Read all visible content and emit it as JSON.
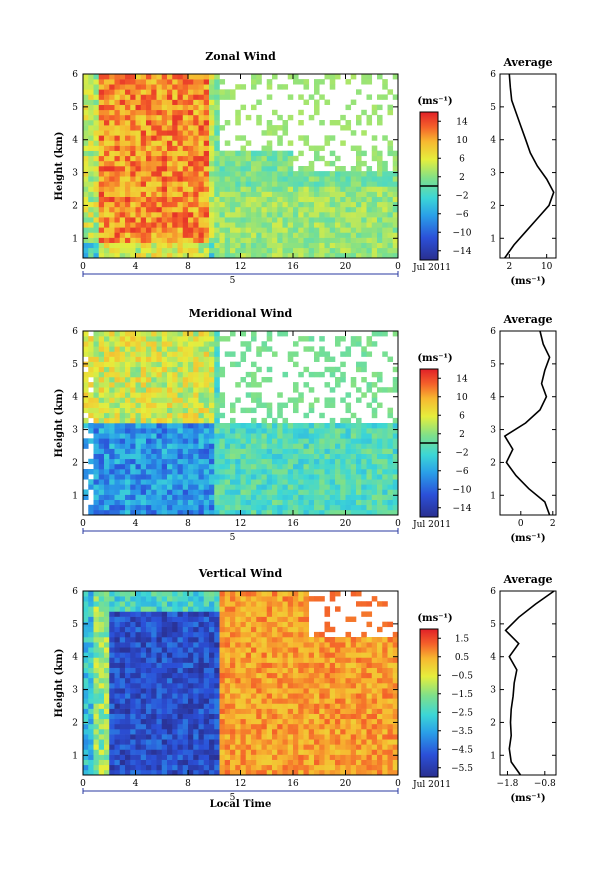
{
  "chart_data": [
    {
      "type": "heatmap",
      "title": "Zonal Wind",
      "ylabel": "Height (km)",
      "xlim": [
        0,
        24
      ],
      "ylim": [
        0.4,
        6
      ],
      "x_ticks": [
        "0",
        "4",
        "8",
        "12",
        "16",
        "20",
        "0"
      ],
      "y_ticks": [
        "1",
        "2",
        "3",
        "4",
        "5",
        "6"
      ],
      "date_marker": "5",
      "date_label": "Jul 2011",
      "colorbar": {
        "unit": "(ms⁻¹)",
        "ticks": [
          "14",
          "10",
          "6",
          "2",
          "−2",
          "−6",
          "−10",
          "−14"
        ],
        "range": [
          -16,
          16
        ]
      },
      "field_description": "strong positive (red) winds 0–10 LT between 0.5–6 km; weaker green/cyan 10–24 LT; data gaps in upper levels after 10 LT",
      "average_profile": {
        "title": "Average",
        "xlabel": "(ms⁻¹)",
        "x_ticks": [
          "2",
          "10"
        ],
        "xlim": [
          0,
          12
        ],
        "height": [
          0.4,
          0.8,
          1.2,
          1.6,
          2.0,
          2.4,
          2.8,
          3.2,
          3.6,
          4.0,
          4.4,
          4.8,
          5.2,
          5.6,
          6.0
        ],
        "value": [
          1.0,
          3.0,
          5.5,
          8.0,
          10.5,
          11.5,
          10.0,
          8.0,
          6.5,
          5.5,
          4.5,
          3.5,
          2.5,
          2.2,
          2.0
        ]
      }
    },
    {
      "type": "heatmap",
      "title": "Meridional Wind",
      "ylabel": "Height (km)",
      "xlim": [
        0,
        24
      ],
      "ylim": [
        0.4,
        6
      ],
      "x_ticks": [
        "0",
        "4",
        "8",
        "12",
        "16",
        "20",
        "0"
      ],
      "y_ticks": [
        "1",
        "2",
        "3",
        "4",
        "5",
        "6"
      ],
      "date_marker": "5",
      "date_label": "Jul 2011",
      "colorbar": {
        "unit": "(ms⁻¹)",
        "ticks": [
          "14",
          "10",
          "6",
          "2",
          "−2",
          "−6",
          "−10",
          "−14"
        ],
        "range": [
          -16,
          16
        ]
      },
      "field_description": "negative (blue) winds 2–10 LT below 3 km; positive yellow/orange above 3 km; mixed green/cyan after 10 LT",
      "average_profile": {
        "title": "Average",
        "xlabel": "(ms⁻¹)",
        "x_ticks": [
          "0",
          "2"
        ],
        "xlim": [
          -1.3,
          2.2
        ],
        "height": [
          0.4,
          0.8,
          1.2,
          1.6,
          2.0,
          2.4,
          2.8,
          3.2,
          3.6,
          4.0,
          4.4,
          4.8,
          5.2,
          5.6,
          6.0
        ],
        "value": [
          1.8,
          1.5,
          0.5,
          -0.3,
          -0.9,
          -0.5,
          -1.0,
          0.3,
          1.2,
          1.6,
          1.3,
          1.5,
          1.8,
          1.4,
          1.2
        ]
      }
    },
    {
      "type": "heatmap",
      "title": "Vertical Wind",
      "ylabel": "Height (km)",
      "xlabel": "Local Time",
      "xlim": [
        0,
        24
      ],
      "ylim": [
        0.4,
        6
      ],
      "x_ticks": [
        "0",
        "4",
        "8",
        "12",
        "16",
        "20",
        "0"
      ],
      "y_ticks": [
        "1",
        "2",
        "3",
        "4",
        "5",
        "6"
      ],
      "date_marker": "5",
      "date_label": "Jul 2011",
      "colorbar": {
        "unit": "(ms⁻¹)",
        "ticks": [
          "1.5",
          "0.5",
          "−0.5",
          "−1.5",
          "−2.5",
          "−3.5",
          "−4.5",
          "−5.5"
        ],
        "range": [
          -6,
          2
        ]
      },
      "field_description": "strong downward (dark blue) 2–10 LT through all heights; near zero (orange/yellow) 10–24 LT; gaps above 4.5 km after 17 LT",
      "average_profile": {
        "title": "Average",
        "xlabel": "(ms⁻¹)",
        "x_ticks": [
          "−1.8",
          "−0.8"
        ],
        "xlim": [
          -2.0,
          -0.5
        ],
        "height": [
          0.4,
          0.8,
          1.2,
          1.6,
          2.0,
          2.4,
          2.8,
          3.2,
          3.6,
          4.0,
          4.4,
          4.8,
          5.2,
          5.6,
          6.0
        ],
        "value": [
          -1.45,
          -1.7,
          -1.75,
          -1.7,
          -1.72,
          -1.7,
          -1.65,
          -1.62,
          -1.55,
          -1.75,
          -1.5,
          -1.85,
          -1.5,
          -1.05,
          -0.55
        ]
      }
    }
  ]
}
